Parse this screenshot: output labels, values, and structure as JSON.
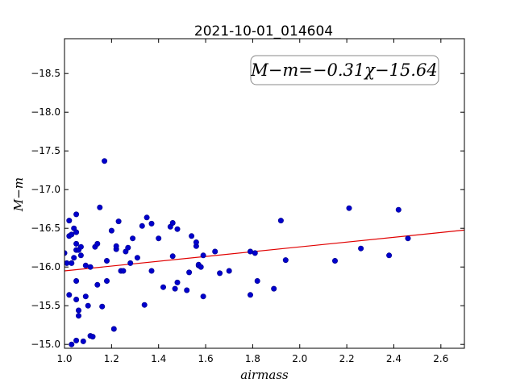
{
  "chart_data": {
    "type": "scatter",
    "title": "2021-10-01_014604",
    "xlabel": "airmass",
    "ylabel": "M−m",
    "xlim": [
      1.0,
      2.7
    ],
    "ylim": [
      -18.95,
      -14.95
    ],
    "y_inverted": true,
    "grid": false,
    "x_ticks": [
      "1.0",
      "1.2",
      "1.4",
      "1.6",
      "1.8",
      "2.0",
      "2.2",
      "2.4",
      "2.6"
    ],
    "y_ticks": [
      "−15.0",
      "−15.5",
      "−16.0",
      "−16.5",
      "−17.0",
      "−17.5",
      "−18.0",
      "−18.5"
    ],
    "annotation": "M−m=−0.31χ−15.64",
    "fit": {
      "slope": -0.31,
      "intercept": -15.64,
      "color": "#e00000"
    },
    "marker_color": "#0000cc",
    "marker_edge": "#00008b",
    "points": [
      [
        1.0,
        -16.18
      ],
      [
        1.01,
        -16.05
      ],
      [
        1.02,
        -15.64
      ],
      [
        1.02,
        -16.4
      ],
      [
        1.02,
        -16.6
      ],
      [
        1.03,
        -15.0
      ],
      [
        1.03,
        -16.05
      ],
      [
        1.03,
        -16.42
      ],
      [
        1.04,
        -16.12
      ],
      [
        1.04,
        -16.5
      ],
      [
        1.05,
        -15.05
      ],
      [
        1.05,
        -15.58
      ],
      [
        1.05,
        -15.82
      ],
      [
        1.05,
        -16.22
      ],
      [
        1.05,
        -16.3
      ],
      [
        1.05,
        -16.45
      ],
      [
        1.05,
        -16.68
      ],
      [
        1.06,
        -15.37
      ],
      [
        1.06,
        -15.44
      ],
      [
        1.06,
        -16.22
      ],
      [
        1.07,
        -16.15
      ],
      [
        1.07,
        -16.26
      ],
      [
        1.08,
        -15.04
      ],
      [
        1.09,
        -15.62
      ],
      [
        1.09,
        -16.02
      ],
      [
        1.1,
        -15.5
      ],
      [
        1.11,
        -16.0
      ],
      [
        1.11,
        -15.11
      ],
      [
        1.12,
        -15.1
      ],
      [
        1.13,
        -16.26
      ],
      [
        1.14,
        -16.3
      ],
      [
        1.14,
        -15.77
      ],
      [
        1.15,
        -16.77
      ],
      [
        1.16,
        -15.49
      ],
      [
        1.17,
        -17.37
      ],
      [
        1.18,
        -16.08
      ],
      [
        1.18,
        -15.82
      ],
      [
        1.2,
        -16.47
      ],
      [
        1.21,
        -15.2
      ],
      [
        1.22,
        -16.23
      ],
      [
        1.22,
        -16.27
      ],
      [
        1.23,
        -16.59
      ],
      [
        1.24,
        -15.95
      ],
      [
        1.25,
        -15.95
      ],
      [
        1.26,
        -16.2
      ],
      [
        1.27,
        -16.25
      ],
      [
        1.28,
        -16.05
      ],
      [
        1.29,
        -16.37
      ],
      [
        1.31,
        -16.12
      ],
      [
        1.33,
        -16.53
      ],
      [
        1.34,
        -15.51
      ],
      [
        1.35,
        -16.64
      ],
      [
        1.37,
        -16.56
      ],
      [
        1.37,
        -15.95
      ],
      [
        1.4,
        -16.37
      ],
      [
        1.42,
        -15.74
      ],
      [
        1.45,
        -16.52
      ],
      [
        1.46,
        -16.57
      ],
      [
        1.46,
        -16.14
      ],
      [
        1.47,
        -15.72
      ],
      [
        1.48,
        -15.8
      ],
      [
        1.48,
        -16.49
      ],
      [
        1.52,
        -15.7
      ],
      [
        1.53,
        -15.93
      ],
      [
        1.54,
        -16.4
      ],
      [
        1.56,
        -16.27
      ],
      [
        1.56,
        -16.32
      ],
      [
        1.57,
        -16.02
      ],
      [
        1.57,
        -16.03
      ],
      [
        1.58,
        -16.0
      ],
      [
        1.59,
        -16.15
      ],
      [
        1.59,
        -15.62
      ],
      [
        1.64,
        -16.2
      ],
      [
        1.66,
        -15.92
      ],
      [
        1.7,
        -15.95
      ],
      [
        1.79,
        -15.64
      ],
      [
        1.79,
        -16.2
      ],
      [
        1.81,
        -16.18
      ],
      [
        1.82,
        -15.82
      ],
      [
        1.89,
        -15.72
      ],
      [
        1.92,
        -16.6
      ],
      [
        1.94,
        -16.09
      ],
      [
        2.15,
        -16.08
      ],
      [
        2.21,
        -16.76
      ],
      [
        2.26,
        -16.24
      ],
      [
        2.38,
        -16.15
      ],
      [
        2.42,
        -16.74
      ],
      [
        2.46,
        -16.37
      ]
    ]
  }
}
